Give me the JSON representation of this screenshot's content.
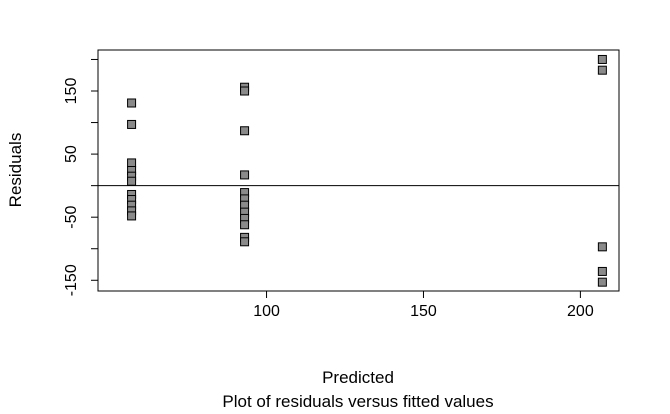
{
  "chart_data": {
    "type": "scatter",
    "title": "",
    "caption": "Plot of residuals versus fitted values",
    "xlabel": "Predicted",
    "ylabel": "Residuals",
    "xlim": [
      46.3,
      212.3
    ],
    "ylim": [
      -167,
      215
    ],
    "xticks": [
      100,
      150,
      200
    ],
    "xtick_labels": [
      "100",
      "150",
      "200"
    ],
    "yticks": [
      -150,
      -100,
      -50,
      0,
      50,
      100,
      150,
      200
    ],
    "ytick_labels": [
      "-150",
      "",
      "-50",
      "",
      "50",
      "",
      "150",
      ""
    ],
    "reference_line": {
      "y": 0
    },
    "marker": {
      "shape": "square",
      "fill": "#8a8a8a",
      "stroke": "#000000"
    },
    "points": [
      {
        "x": 57,
        "y": 131
      },
      {
        "x": 57,
        "y": 97
      },
      {
        "x": 57,
        "y": 36
      },
      {
        "x": 57,
        "y": 24
      },
      {
        "x": 57,
        "y": 15
      },
      {
        "x": 57,
        "y": 7
      },
      {
        "x": 57,
        "y": -14
      },
      {
        "x": 57,
        "y": -22
      },
      {
        "x": 57,
        "y": -31
      },
      {
        "x": 57,
        "y": -40
      },
      {
        "x": 57,
        "y": -48
      },
      {
        "x": 93,
        "y": 156
      },
      {
        "x": 93,
        "y": 150
      },
      {
        "x": 93,
        "y": 87
      },
      {
        "x": 93,
        "y": 17
      },
      {
        "x": 93,
        "y": -11
      },
      {
        "x": 93,
        "y": -21
      },
      {
        "x": 93,
        "y": -31
      },
      {
        "x": 93,
        "y": -42
      },
      {
        "x": 93,
        "y": -52
      },
      {
        "x": 93,
        "y": -62
      },
      {
        "x": 93,
        "y": -82
      },
      {
        "x": 93,
        "y": -89
      },
      {
        "x": 207,
        "y": 200
      },
      {
        "x": 207,
        "y": 183
      },
      {
        "x": 207,
        "y": -97
      },
      {
        "x": 207,
        "y": -136
      },
      {
        "x": 207,
        "y": -153
      }
    ]
  }
}
